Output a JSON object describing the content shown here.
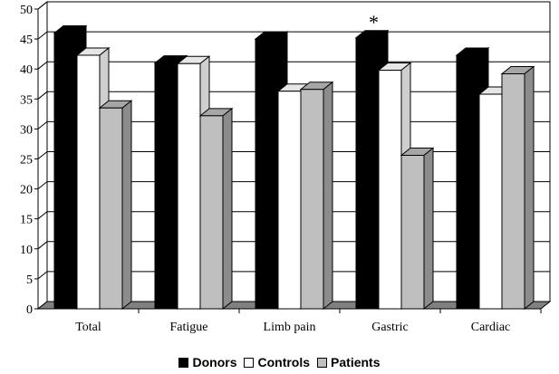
{
  "chart_data": {
    "type": "bar",
    "categories": [
      "Total",
      "Fatigue",
      "Limb pain",
      "Gastric",
      "Cardiac"
    ],
    "series": [
      {
        "name": "Donors",
        "values": [
          46,
          41,
          45,
          45.2,
          42.3
        ],
        "color": "#000000"
      },
      {
        "name": "Controls",
        "values": [
          42.3,
          40.9,
          36.3,
          39.8,
          35.8
        ],
        "color": "#ffffff"
      },
      {
        "name": "Patients",
        "values": [
          33.5,
          32.2,
          36.6,
          25.6,
          39.2
        ],
        "color": "#bfbfbf"
      }
    ],
    "yticks": [
      0,
      5,
      10,
      15,
      20,
      25,
      30,
      35,
      40,
      45,
      50
    ],
    "ylim": [
      0,
      50
    ],
    "grid": true,
    "three_d": true,
    "legend_position": "bottom",
    "annotations": [
      {
        "text": "*",
        "category": "Gastric",
        "series": "Donors"
      }
    ]
  }
}
